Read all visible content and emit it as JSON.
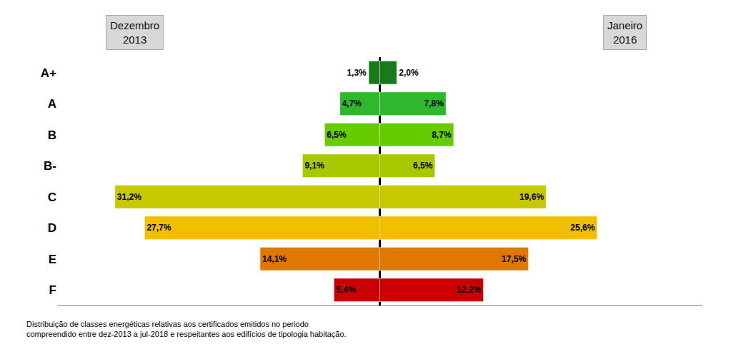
{
  "chart_data": {
    "type": "bar",
    "orientation": "horizontal",
    "categories": [
      "A+",
      "A",
      "B",
      "B-",
      "C",
      "D",
      "E",
      "F"
    ],
    "series": [
      {
        "values": [
          1.3,
          4.7,
          6.5,
          9.1,
          31.2,
          27.7,
          14.1,
          5.4
        ],
        "value_labels": [
          "1,3%",
          "4,7%",
          "6,5%",
          "9,1%",
          "31,2%",
          "27,7%",
          "14,1%",
          "5,4%"
        ],
        "colors": [
          "#1a7a1a",
          "#2db82d",
          "#66cc00",
          "#a8c800",
          "#c8c800",
          "#f0c000",
          "#e07800",
          "#cc0000"
        ]
      },
      {
        "values": [
          2.0,
          7.8,
          8.7,
          6.5,
          19.6,
          25.6,
          17.5,
          12.2
        ],
        "value_labels": [
          "2,0%",
          "7,8%",
          "8,7%",
          "6,5%",
          "19,6%",
          "25,6%",
          "17,5%",
          "12,2%"
        ],
        "colors": [
          "#1a7a1a",
          "#2db82d",
          "#66cc00",
          "#a8c800",
          "#c8c800",
          "#f0c000",
          "#e07800",
          "#cc0000"
        ]
      }
    ],
    "annotations": [
      "Dezembro\n2013",
      "Janeiro\n2016",
      "Distribuição de classes energéticas relativas aos certificados emitidos no periodo\ncompreendido entre dez-2013 a jul-2018 e respeitantes aos edifícios de tipologia habitação."
    ],
    "xlim": [
      -38,
      38
    ],
    "xticks": [],
    "data_labels": true,
    "tick_labels": "y",
    "grid": false
  }
}
